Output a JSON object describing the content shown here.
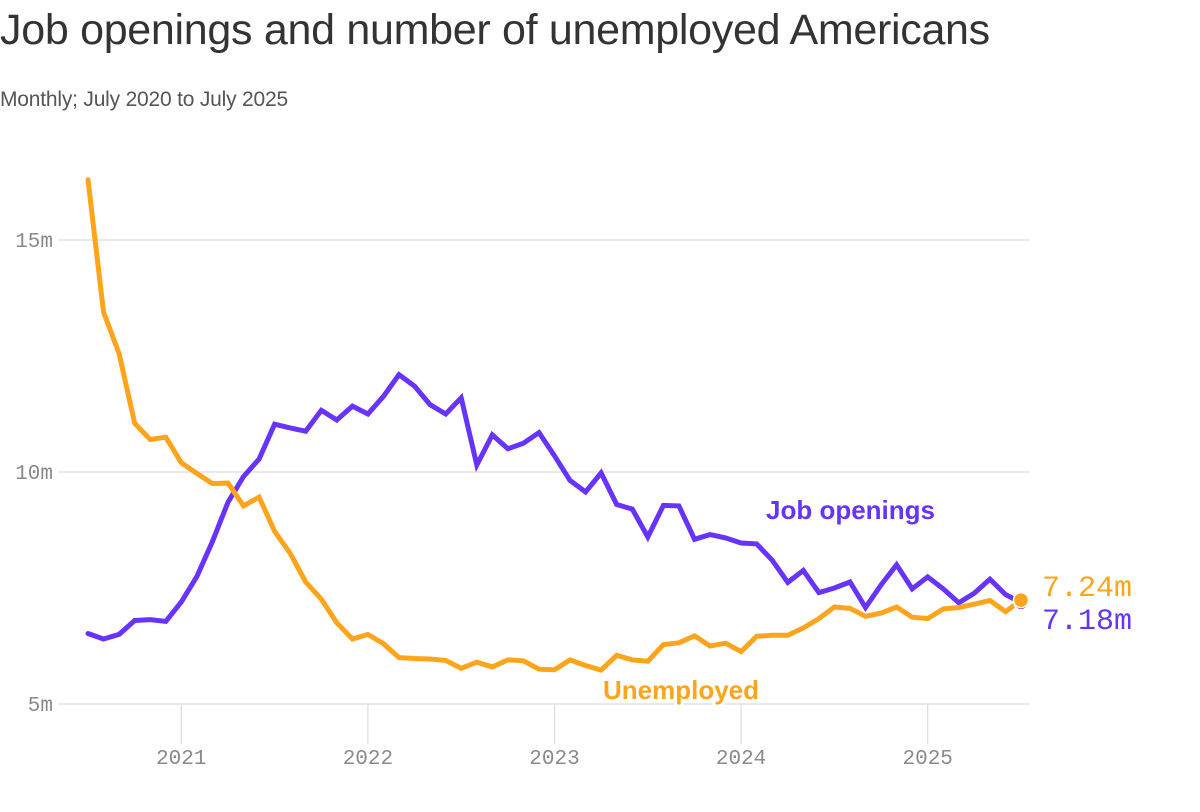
{
  "header": {
    "title": "Job openings and number of unemployed Americans",
    "subtitle": "Monthly; July 2020 to July 2025"
  },
  "colors": {
    "job_openings": "#6633ff",
    "unemployed": "#ffa41b",
    "grid": "#dddddd",
    "tick_text": "#8a8a8a"
  },
  "chart_data": {
    "type": "line",
    "title": "Job openings and number of unemployed Americans",
    "subtitle": "Monthly; July 2020 to July 2025",
    "xlabel": "",
    "ylabel": "",
    "x_start": "2020-07",
    "x_end": "2025-07",
    "frequency": "monthly",
    "ylim": [
      4.7,
      16.6
    ],
    "y_ticks": [
      5,
      10,
      15
    ],
    "y_tick_labels": [
      "5m",
      "10m",
      "15m"
    ],
    "x_ticks": [
      "2021-01",
      "2022-01",
      "2023-01",
      "2024-01",
      "2025-01"
    ],
    "x_tick_labels": [
      "2021",
      "2022",
      "2023",
      "2024",
      "2025"
    ],
    "grid": "horizontal",
    "legend": "inline labels",
    "series": [
      {
        "name": "Job openings",
        "label": "Job openings",
        "end_label": "7.18m",
        "end_value": 7.18,
        "values": [
          6.52,
          6.4,
          6.5,
          6.8,
          6.82,
          6.78,
          7.2,
          7.75,
          8.5,
          9.35,
          9.9,
          10.28,
          11.03,
          10.95,
          10.88,
          11.33,
          11.12,
          11.42,
          11.25,
          11.63,
          12.1,
          11.85,
          11.45,
          11.25,
          11.6,
          10.15,
          10.8,
          10.5,
          10.62,
          10.85,
          10.35,
          9.82,
          9.57,
          9.98,
          9.3,
          9.2,
          8.6,
          9.28,
          9.27,
          8.55,
          8.65,
          8.58,
          8.47,
          8.45,
          8.1,
          7.62,
          7.88,
          7.4,
          7.5,
          7.63,
          7.08,
          7.57,
          8.0,
          7.48,
          7.74,
          7.48,
          7.18,
          7.39,
          7.69,
          7.36,
          7.18
        ]
      },
      {
        "name": "Unemployed",
        "label": "Unemployed",
        "end_label": "7.24m",
        "end_value": 7.24,
        "values": [
          16.3,
          13.45,
          12.55,
          11.05,
          10.7,
          10.75,
          10.2,
          9.97,
          9.75,
          9.76,
          9.27,
          9.46,
          8.72,
          8.25,
          7.63,
          7.26,
          6.75,
          6.4,
          6.5,
          6.3,
          6.0,
          5.98,
          5.97,
          5.94,
          5.77,
          5.9,
          5.8,
          5.95,
          5.93,
          5.75,
          5.74,
          5.95,
          5.83,
          5.73,
          6.05,
          5.95,
          5.92,
          6.28,
          6.32,
          6.47,
          6.25,
          6.31,
          6.13,
          6.46,
          6.48,
          6.48,
          6.64,
          6.84,
          7.09,
          7.06,
          6.89,
          6.96,
          7.09,
          6.87,
          6.84,
          7.05,
          7.08,
          7.15,
          7.23,
          6.99,
          7.24
        ]
      }
    ]
  }
}
